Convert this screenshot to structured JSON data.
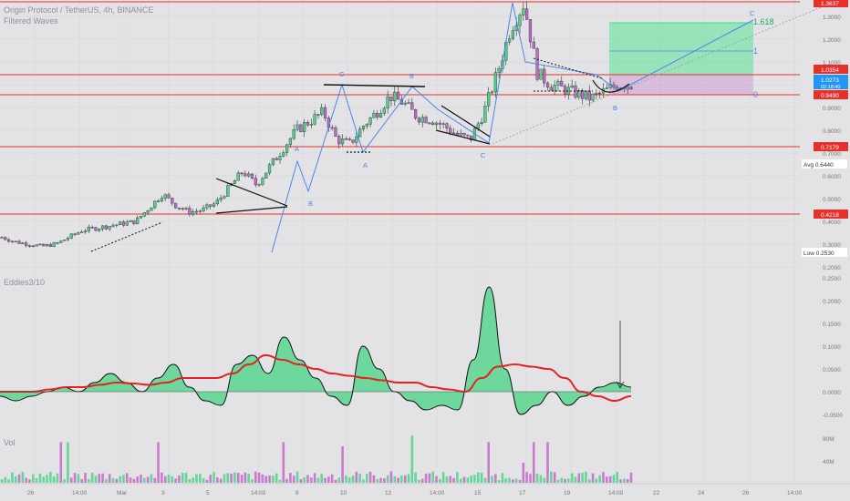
{
  "header": {
    "title": "Origin Protocol / TetherUS, 4h, BINANCE",
    "indicator": "Filtered Waves"
  },
  "oscillator_label": "Eddies3/10",
  "volume_label": "Vol",
  "colors": {
    "background": "#e3e3e6",
    "bull": "#4fd38a",
    "bear": "#c16ac6",
    "resistance_line": "#e8302b",
    "wave_line": "#4a86e8",
    "fib_green": "#3ee285",
    "signal_line": "#e52222"
  },
  "chart_data": [
    {
      "type": "candlestick",
      "title": "Origin Protocol / TetherUS, 4h, BINANCE",
      "x_ticks": [
        "26",
        "14:00",
        "Mar",
        "3",
        "5",
        "14:00",
        "8",
        "10",
        "12",
        "14:00",
        "15",
        "17",
        "19",
        "14:00",
        "22",
        "24",
        "26",
        "14:00"
      ],
      "price_ticks": [
        1.3,
        1.2,
        1.1,
        1.0,
        0.9,
        0.8,
        0.7,
        0.6,
        0.5,
        0.4,
        0.3,
        0.2
      ],
      "horizontal_levels": [
        1.3637,
        1.0354,
        0.949,
        0.7179,
        0.4218
      ],
      "labels": [
        {
          "text": "1.3637",
          "value": 1.3637
        },
        {
          "text": "1.0354",
          "value": 1.0354
        },
        {
          "text": "1.0273",
          "value": 1.0273,
          "sub": "02:18:40"
        },
        {
          "text": "0.9490",
          "value": 0.949
        },
        {
          "text": "0.7179",
          "value": 0.7179
        },
        {
          "text": "0.6440",
          "value": 0.644,
          "prefix": "Avg"
        },
        {
          "text": "0.4218",
          "value": 0.4218
        },
        {
          "text": "0.2530",
          "value": 0.253,
          "prefix": "Low"
        }
      ],
      "wave_labels": [
        "A",
        "B",
        "C",
        "B",
        "A",
        "C",
        "B",
        "C"
      ],
      "fib_levels": [
        {
          "label": "1.618",
          "value": 1.618
        },
        {
          "label": "1",
          "value": 1
        },
        {
          "label": "0",
          "value": 0
        }
      ],
      "close_trend": [
        0.33,
        0.31,
        0.3,
        0.29,
        0.3,
        0.33,
        0.36,
        0.37,
        0.38,
        0.39,
        0.4,
        0.46,
        0.52,
        0.47,
        0.44,
        0.45,
        0.48,
        0.55,
        0.62,
        0.56,
        0.64,
        0.72,
        0.8,
        0.84,
        0.88,
        0.76,
        0.74,
        0.82,
        0.88,
        0.95,
        0.92,
        0.86,
        0.85,
        0.82,
        0.78,
        0.76,
        0.88,
        1.05,
        1.25,
        1.36,
        1.05,
        1.0,
        0.98,
        0.96,
        0.94,
        0.97,
        1.0,
        1.0
      ]
    },
    {
      "type": "area",
      "title": "Eddies3/10",
      "y_ticks": [
        0.25,
        0.2,
        0.15,
        0.1,
        0.05,
        0.0,
        -0.05
      ],
      "oscillator": [
        -0.01,
        -0.02,
        -0.01,
        0.0,
        0.01,
        0.0,
        0.02,
        0.04,
        0.02,
        0.0,
        0.03,
        0.06,
        0.01,
        -0.02,
        -0.03,
        0.06,
        0.08,
        0.04,
        0.12,
        0.07,
        0.03,
        -0.01,
        -0.03,
        0.1,
        0.05,
        0.0,
        -0.02,
        -0.04,
        -0.03,
        -0.04,
        0.07,
        0.23,
        0.05,
        -0.05,
        -0.03,
        0.0,
        -0.03,
        -0.01,
        0.01,
        0.02,
        0.01
      ],
      "signal": [
        0.0,
        0.0,
        0.0,
        0.005,
        0.01,
        0.01,
        0.015,
        0.02,
        0.018,
        0.015,
        0.02,
        0.03,
        0.03,
        0.03,
        0.04,
        0.06,
        0.08,
        0.07,
        0.06,
        0.05,
        0.04,
        0.035,
        0.03,
        0.025,
        0.02,
        0.02,
        0.01,
        0.005,
        0.0,
        0.03,
        0.055,
        0.06,
        0.055,
        0.05,
        0.03,
        0.0,
        -0.01,
        -0.02,
        -0.01
      ]
    },
    {
      "type": "bar",
      "title": "Vol",
      "y_ticks": [
        "80M",
        "40M"
      ]
    }
  ]
}
